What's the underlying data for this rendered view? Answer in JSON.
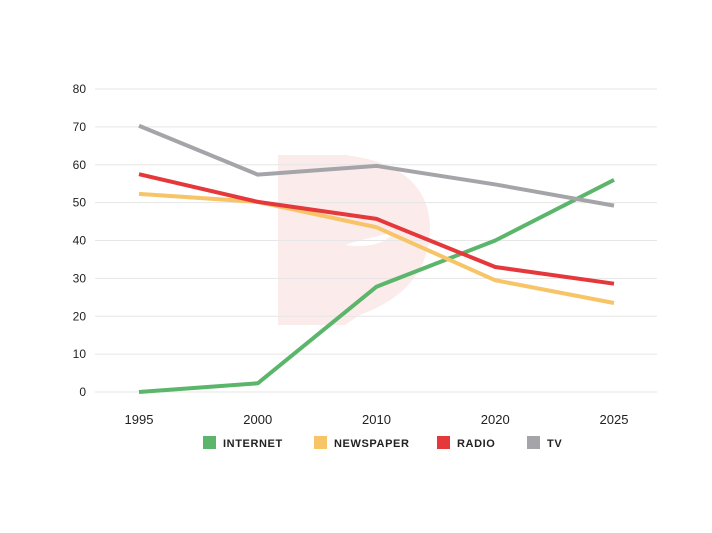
{
  "chart_data": {
    "type": "line",
    "title": "",
    "xlabel": "",
    "ylabel": "",
    "categories": [
      "1995",
      "2000",
      "2010",
      "2020",
      "2025"
    ],
    "ylim": [
      0,
      80
    ],
    "yticks": [
      0,
      10,
      20,
      30,
      40,
      50,
      60,
      70,
      80
    ],
    "grid": true,
    "legend_position": "bottom",
    "series": [
      {
        "name": "INTERNET",
        "color": "#5bb56b",
        "values": [
          0,
          2.3,
          27.8,
          40,
          56
        ]
      },
      {
        "name": "NEWSPAPER",
        "color": "#f7c468",
        "values": [
          52.3,
          50.2,
          43.5,
          29.5,
          23.5
        ]
      },
      {
        "name": "RADIO",
        "color": "#e5383b",
        "values": [
          57.5,
          50.2,
          45.7,
          33,
          28.6
        ]
      },
      {
        "name": "TV",
        "color": "#a5a4a9",
        "values": [
          70.3,
          57.4,
          59.7,
          54.8,
          49.2
        ]
      }
    ]
  }
}
